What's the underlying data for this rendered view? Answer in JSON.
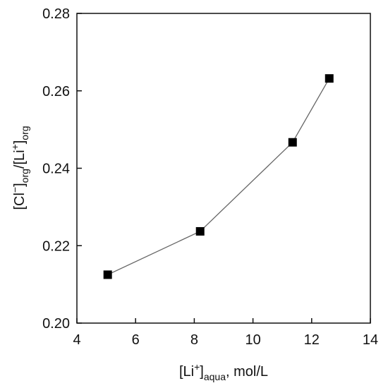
{
  "chart_data": {
    "type": "scatter",
    "xlabel": {
      "prefix": "[Li",
      "sup": "+",
      "close": "]",
      "sub": "aqua",
      "suffix": ", mol/L"
    },
    "ylabel": {
      "p1": "[Cl",
      "sup1": "−",
      "p2": "]",
      "sub1": "org",
      "p3": "/[Li",
      "sup2": "+",
      "p4": "]",
      "sub2": "org"
    },
    "xlim": [
      4,
      14
    ],
    "ylim": [
      0.2,
      0.28
    ],
    "x_ticks": [
      4,
      6,
      8,
      10,
      12,
      14
    ],
    "y_ticks": [
      0.2,
      0.22,
      0.24,
      0.26,
      0.28
    ],
    "x_tick_labels": [
      "4",
      "6",
      "8",
      "10",
      "12",
      "14"
    ],
    "y_tick_labels": [
      "0.20",
      "0.22",
      "0.24",
      "0.26",
      "0.28"
    ],
    "grid": false,
    "series": [
      {
        "x": [
          5.05,
          8.2,
          11.35,
          12.6
        ],
        "y": [
          0.2125,
          0.2237,
          0.2467,
          0.2632
        ],
        "marker": "square",
        "line": "connected",
        "marker_color": "#000000",
        "line_color": "#666666"
      }
    ]
  }
}
